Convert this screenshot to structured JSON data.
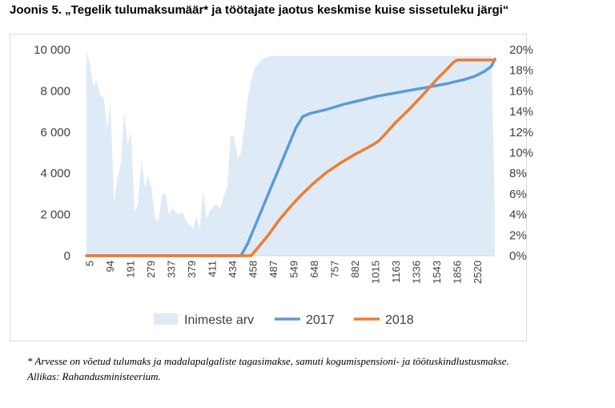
{
  "figure": {
    "title": "Joonis 5. „Tegelik tulumaksumäär* ja töötajate jaotus keskmise kuise sissetuleku järgi“",
    "footnote": "* Arvesse on võetud tulumaks ja madalapalgaliste tagasimakse, samuti kogumispensioni- ja töötuskindlustusmakse.",
    "source": "Allikas: Rahandusministeerium."
  },
  "colors": {
    "area": "#deebf7",
    "line_2017": "#5b9bd5",
    "line_2018": "#ed7d31",
    "axis": "#d9d9d9",
    "text": "#404040"
  },
  "chart_data": {
    "type": "area+line",
    "title": "",
    "grid": false,
    "legend_position": "bottom",
    "x_tick_labels": [
      "5",
      "94",
      "191",
      "279",
      "337",
      "379",
      "411",
      "434",
      "458",
      "487",
      "549",
      "648",
      "757",
      "882",
      "1015",
      "1163",
      "1336",
      "1543",
      "1856",
      "2520"
    ],
    "n_points": 60,
    "left_axis": {
      "min": 0,
      "max": 10000,
      "ticks": [
        "0",
        "2 000",
        "4 000",
        "6 000",
        "8 000",
        "10 000"
      ]
    },
    "right_axis": {
      "min": 0,
      "max": 0.2,
      "ticks": [
        "0%",
        "2%",
        "4%",
        "6%",
        "8%",
        "10%",
        "12%",
        "14%",
        "16%",
        "18%",
        "20%"
      ]
    },
    "series": [
      {
        "name": "Inimeste arv",
        "type": "area",
        "axis": "left",
        "points": [
          [
            0,
            9900
          ],
          [
            1,
            9300
          ],
          [
            2,
            8200
          ],
          [
            3,
            8500
          ],
          [
            4,
            7800
          ],
          [
            5,
            7700
          ],
          [
            6,
            6200
          ],
          [
            7,
            7400
          ],
          [
            8,
            2600
          ],
          [
            9,
            3700
          ],
          [
            10,
            4500
          ],
          [
            11,
            7000
          ],
          [
            12,
            5400
          ],
          [
            13,
            6000
          ],
          [
            14,
            2100
          ],
          [
            15,
            2500
          ],
          [
            16,
            4700
          ],
          [
            17,
            3300
          ],
          [
            18,
            3900
          ],
          [
            19,
            3200
          ],
          [
            20,
            1800
          ],
          [
            21,
            1700
          ],
          [
            22,
            3000
          ],
          [
            23,
            3000
          ],
          [
            24,
            2000
          ],
          [
            25,
            2300
          ],
          [
            26,
            2100
          ],
          [
            27,
            2000
          ],
          [
            28,
            2100
          ],
          [
            29,
            1700
          ],
          [
            30,
            1500
          ],
          [
            31,
            1300
          ],
          [
            32,
            1900
          ],
          [
            33,
            1300
          ],
          [
            34,
            3200
          ],
          [
            35,
            1800
          ],
          [
            36,
            2200
          ],
          [
            37,
            2400
          ],
          [
            38,
            2500
          ],
          [
            39,
            2300
          ],
          [
            40,
            2900
          ],
          [
            41,
            3300
          ],
          [
            42,
            5800
          ],
          [
            43,
            5800
          ],
          [
            44,
            4700
          ],
          [
            45,
            5000
          ],
          [
            46,
            6200
          ],
          [
            47,
            7600
          ],
          [
            48,
            8500
          ],
          [
            49,
            9100
          ],
          [
            50,
            9300
          ],
          [
            51,
            9500
          ],
          [
            52,
            9600
          ],
          [
            53,
            9650
          ],
          [
            54,
            9700
          ],
          [
            55,
            9700
          ],
          [
            56,
            9700
          ],
          [
            57,
            9700
          ],
          [
            58,
            9700
          ],
          [
            59,
            9700
          ],
          [
            60,
            9700
          ],
          [
            61,
            9700
          ],
          [
            62,
            9700
          ],
          [
            63,
            9700
          ],
          [
            64,
            9700
          ],
          [
            65,
            9700
          ],
          [
            66,
            9700
          ],
          [
            67,
            9700
          ],
          [
            68,
            9700
          ],
          [
            69,
            9700
          ],
          [
            70,
            9700
          ],
          [
            71,
            9700
          ],
          [
            72,
            9700
          ],
          [
            73,
            9700
          ],
          [
            74,
            9700
          ],
          [
            75,
            9700
          ],
          [
            76,
            9700
          ],
          [
            77,
            9700
          ],
          [
            78,
            9700
          ],
          [
            79,
            9700
          ],
          [
            80,
            9700
          ],
          [
            81,
            9700
          ],
          [
            82,
            9700
          ],
          [
            83,
            9700
          ],
          [
            84,
            9700
          ],
          [
            85,
            9700
          ],
          [
            86,
            9700
          ],
          [
            87,
            9700
          ],
          [
            88,
            9700
          ],
          [
            89,
            9700
          ],
          [
            90,
            9700
          ],
          [
            91,
            9700
          ],
          [
            92,
            9700
          ],
          [
            93,
            9700
          ],
          [
            94,
            9700
          ],
          [
            95,
            9700
          ],
          [
            96,
            9700
          ],
          [
            97,
            9700
          ],
          [
            98,
            9700
          ],
          [
            99,
            9700
          ],
          [
            100,
            9700
          ],
          [
            101,
            9700
          ],
          [
            102,
            9700
          ],
          [
            103,
            9700
          ],
          [
            104,
            9700
          ],
          [
            105,
            9700
          ],
          [
            106,
            9700
          ],
          [
            107,
            9700
          ],
          [
            108,
            9700
          ],
          [
            109,
            9700
          ],
          [
            110,
            9700
          ],
          [
            111,
            9700
          ],
          [
            112,
            9700
          ],
          [
            113,
            9700
          ],
          [
            114,
            9700
          ],
          [
            115,
            9700
          ],
          [
            116,
            9700
          ],
          [
            117,
            9700
          ],
          [
            118,
            9700
          ],
          [
            119,
            2000
          ]
        ]
      },
      {
        "name": "2017",
        "type": "line",
        "axis": "right",
        "points": [
          [
            0,
            0
          ],
          [
            45,
            0
          ],
          [
            47,
            0.012
          ],
          [
            49,
            0.028
          ],
          [
            51,
            0.044
          ],
          [
            53,
            0.06
          ],
          [
            55,
            0.076
          ],
          [
            57,
            0.092
          ],
          [
            59,
            0.108
          ],
          [
            61,
            0.124
          ],
          [
            63,
            0.135
          ],
          [
            65,
            0.138
          ],
          [
            70,
            0.142
          ],
          [
            75,
            0.147
          ],
          [
            80,
            0.151
          ],
          [
            85,
            0.155
          ],
          [
            90,
            0.158
          ],
          [
            95,
            0.161
          ],
          [
            100,
            0.164
          ],
          [
            105,
            0.167
          ],
          [
            110,
            0.171
          ],
          [
            113,
            0.174
          ],
          [
            116,
            0.179
          ],
          [
            118,
            0.184
          ],
          [
            119,
            0.191
          ]
        ]
      },
      {
        "name": "2018",
        "type": "line",
        "axis": "right",
        "points": [
          [
            0,
            0
          ],
          [
            48,
            0
          ],
          [
            50,
            0.008
          ],
          [
            53,
            0.02
          ],
          [
            56,
            0.034
          ],
          [
            59,
            0.046
          ],
          [
            62,
            0.057
          ],
          [
            66,
            0.07
          ],
          [
            70,
            0.081
          ],
          [
            74,
            0.09
          ],
          [
            78,
            0.098
          ],
          [
            82,
            0.105
          ],
          [
            85,
            0.111
          ],
          [
            87,
            0.118
          ],
          [
            90,
            0.129
          ],
          [
            94,
            0.142
          ],
          [
            98,
            0.156
          ],
          [
            102,
            0.171
          ],
          [
            105,
            0.181
          ],
          [
            107,
            0.188
          ],
          [
            108,
            0.19
          ],
          [
            119,
            0.19
          ]
        ]
      }
    ]
  }
}
